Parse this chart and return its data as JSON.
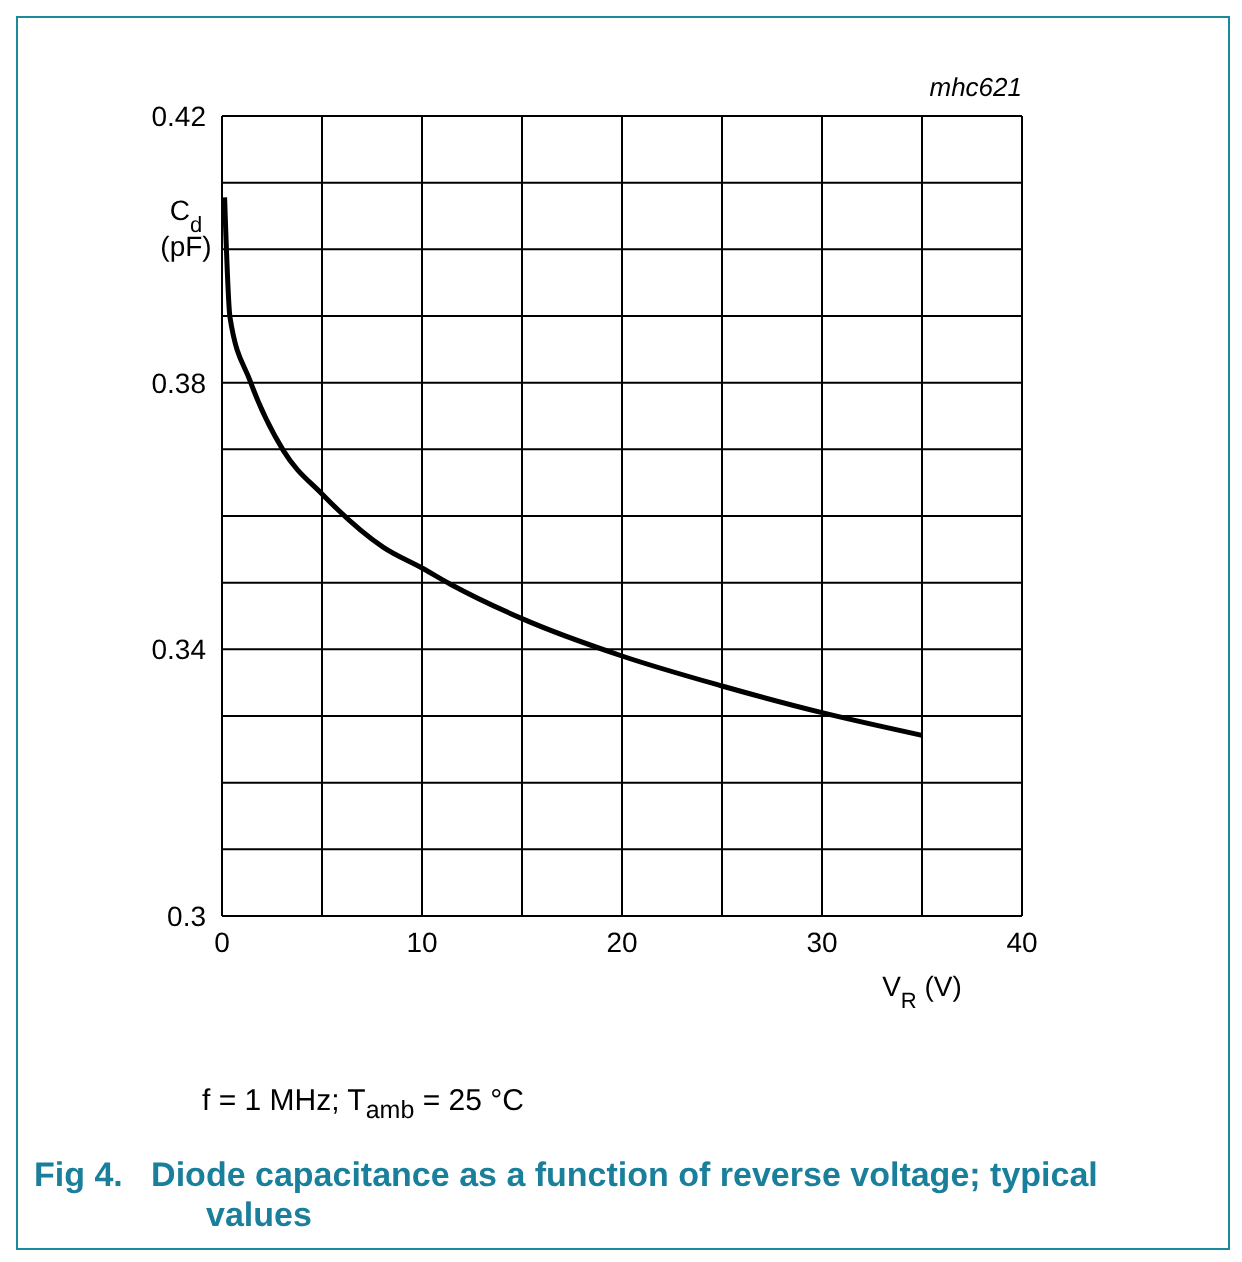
{
  "chart_data": {
    "type": "line",
    "title": "Fig 4.   Diode capacitance as a function of reverse voltage; typical values",
    "xlabel": "V$_{R}$ (V)",
    "ylabel": "C$_{d}$ (pF)",
    "annotations": [
      "mhc621",
      "f = 1 MHz; T$_{amb}$ = 25 °C"
    ],
    "series": [
      {
        "color": "#000000",
        "x": [
          0.13,
          0.4,
          1.4,
          3.07,
          5,
          8.07,
          10,
          11.4,
          15,
          20,
          25,
          30,
          35
        ],
        "values": [
          0.4078,
          0.3898,
          0.3803,
          0.3698,
          0.3633,
          0.3553,
          0.3522,
          0.3498,
          0.3446,
          0.339,
          0.3345,
          0.3305,
          0.3271
        ]
      }
    ],
    "xlim": [
      0,
      40
    ],
    "ylim": [
      0.3,
      0.42
    ],
    "xticks": [
      0,
      {
        "value": 5,
        "label": null
      },
      10,
      {
        "value": 15,
        "label": null
      },
      20,
      {
        "value": 25,
        "label": null
      },
      30,
      {
        "value": 35,
        "label": null
      },
      40
    ],
    "yticks": [
      0.3,
      {
        "value": 0.31,
        "label": null
      },
      {
        "value": 0.32,
        "label": null
      },
      {
        "value": 0.33,
        "label": null
      },
      0.34,
      {
        "value": 0.35,
        "label": null
      },
      {
        "value": 0.36,
        "label": null
      },
      {
        "value": 0.37,
        "label": null
      },
      0.38,
      {
        "value": 0.39,
        "label": null
      },
      {
        "value": 0.4,
        "label": null
      },
      {
        "value": 0.41,
        "label": null
      },
      0.42
    ],
    "grid": true,
    "marker": "none",
    "line_style": "solid"
  }
}
